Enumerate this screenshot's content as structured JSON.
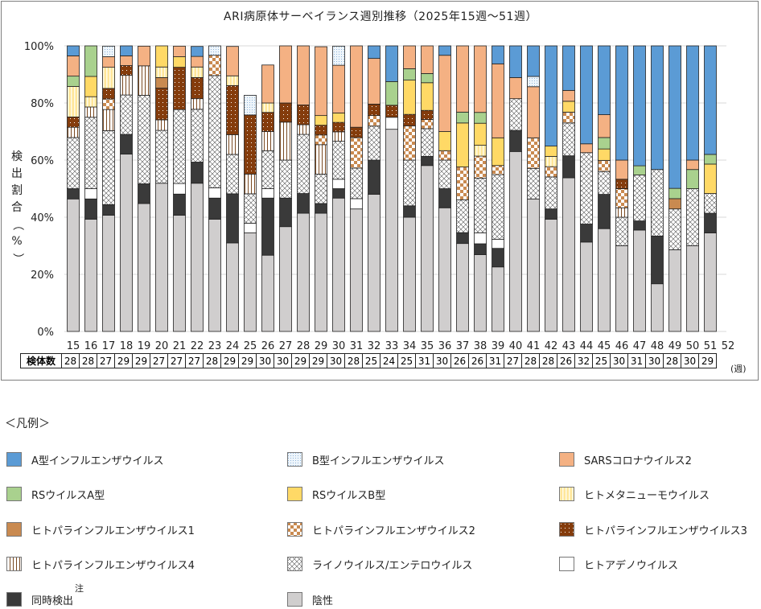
{
  "chart_data": {
    "type": "bar",
    "stacked": true,
    "percent": true,
    "title": "ARI病原体サーベイランス週別推移（2025年15週～51週）",
    "xlabel": "",
    "ylabel": "検出割合（%）",
    "ylim": [
      0,
      100
    ],
    "yticks": [
      "0%",
      "20%",
      "40%",
      "60%",
      "80%",
      "100%"
    ],
    "grid": true,
    "x_unit": "(週)",
    "categories": [
      "15",
      "16",
      "17",
      "18",
      "19",
      "20",
      "21",
      "22",
      "23",
      "24",
      "25",
      "26",
      "27",
      "28",
      "29",
      "30",
      "31",
      "32",
      "33",
      "34",
      "35",
      "36",
      "37",
      "38",
      "39",
      "40",
      "41",
      "42",
      "43",
      "44",
      "45",
      "46",
      "47",
      "48",
      "49",
      "50",
      "51",
      "52"
    ],
    "count_header": "検体数",
    "counts": [
      28,
      28,
      27,
      29,
      29,
      27,
      27,
      27,
      28,
      29,
      29,
      30,
      30,
      29,
      29,
      30,
      28,
      25,
      24,
      25,
      31,
      30,
      26,
      26,
      31,
      27,
      28,
      28,
      26,
      32,
      25,
      30,
      31,
      30,
      28,
      30,
      29,
      null
    ],
    "series": [
      {
        "key": "neg",
        "name": "陰性",
        "color": "#d0cece",
        "pattern": "solid",
        "values": [
          46.4,
          39.3,
          40.7,
          62.1,
          44.8,
          51.9,
          40.7,
          51.9,
          39.3,
          31.0,
          34.5,
          26.7,
          36.7,
          41.4,
          41.4,
          46.7,
          42.9,
          48.0,
          70.8,
          40.0,
          58.1,
          43.3,
          30.8,
          26.9,
          22.6,
          63.0,
          46.4,
          39.3,
          53.8,
          31.3,
          36.0,
          30.0,
          35.5,
          16.7,
          28.6,
          30.0,
          34.5,
          0
        ]
      },
      {
        "key": "co",
        "name": "同時検出",
        "color": "#3a3a3a",
        "pattern": "solid",
        "values": [
          3.6,
          7.1,
          3.7,
          6.9,
          6.9,
          0,
          7.4,
          7.4,
          7.4,
          17.2,
          0,
          20.0,
          10.0,
          6.9,
          3.4,
          3.3,
          0,
          12.0,
          0,
          4.0,
          3.2,
          6.7,
          3.8,
          3.8,
          6.5,
          7.4,
          0,
          3.6,
          7.7,
          6.3,
          12.0,
          0,
          3.2,
          16.7,
          0,
          0,
          6.9,
          0
        ]
      },
      {
        "key": "adeno",
        "name": "ヒトアデノウイルス",
        "color": "#ffffff",
        "pattern": "solid",
        "values": [
          0,
          3.6,
          0,
          0,
          0,
          0,
          3.7,
          0,
          3.6,
          0,
          3.4,
          3.3,
          0,
          0,
          0,
          3.3,
          3.6,
          0,
          4.2,
          0,
          0,
          0,
          0,
          3.8,
          3.2,
          0,
          0,
          0,
          0,
          0,
          0,
          0,
          0,
          0,
          0,
          0,
          0,
          0
        ]
      },
      {
        "key": "rhino",
        "name": "ライノウイルス/エンテロウイルス",
        "color": "#ffffff",
        "pattern": "cross",
        "values": [
          17.9,
          25.0,
          25.9,
          13.8,
          31.0,
          18.5,
          25.9,
          18.5,
          39.3,
          13.8,
          10.3,
          13.3,
          13.3,
          20.7,
          10.3,
          13.3,
          10.7,
          11.9,
          0,
          16.0,
          9.7,
          10.0,
          11.5,
          19.2,
          22.6,
          11.1,
          10.7,
          11.2,
          11.5,
          25.0,
          8.0,
          10.0,
          16.1,
          23.3,
          14.3,
          20.0,
          6.9,
          0
        ]
      },
      {
        "key": "para4",
        "name": "ヒトパラインフルエンザウイルス4",
        "color": "#ffffff",
        "pattern": "vstripe-brown",
        "values": [
          3.6,
          3.6,
          7.4,
          6.9,
          10.3,
          3.7,
          0,
          3.7,
          0,
          6.9,
          6.9,
          6.7,
          13.3,
          3.4,
          10.3,
          3.3,
          0,
          0,
          0,
          0,
          0,
          0,
          0,
          0,
          0,
          0,
          0,
          0,
          0,
          0,
          0,
          3.3,
          0,
          0,
          0,
          0,
          0,
          0
        ]
      },
      {
        "key": "para2",
        "name": "ヒトパラインフルエンザウイルス2",
        "color": "#c98a50",
        "pattern": "checker",
        "values": [
          0,
          0,
          3.7,
          0,
          0,
          0,
          0,
          0,
          7.1,
          0,
          0,
          0,
          0,
          0,
          3.4,
          0,
          10.7,
          3.7,
          0,
          12.0,
          3.2,
          3.3,
          11.5,
          7.7,
          3.2,
          0,
          10.7,
          3.6,
          3.8,
          0,
          3.9,
          6.7,
          0,
          0,
          0,
          0,
          0,
          0
        ]
      },
      {
        "key": "para3",
        "name": "ヒトパラインフルエンザウイルス3",
        "color": "#843c0c",
        "pattern": "dots",
        "values": [
          3.6,
          0,
          3.7,
          3.4,
          0,
          11.1,
          14.8,
          7.4,
          0,
          17.2,
          20.7,
          6.7,
          6.7,
          6.9,
          3.4,
          3.3,
          3.6,
          4.0,
          4.2,
          4.0,
          3.2,
          0,
          0,
          0,
          0,
          0,
          0,
          0,
          0,
          0,
          0,
          3.3,
          0,
          0,
          0,
          0,
          0,
          0
        ]
      },
      {
        "key": "para1",
        "name": "ヒトパラインフルエンザウイルス1",
        "color": "#c98a50",
        "pattern": "solid",
        "values": [
          0,
          0,
          0,
          0,
          0,
          3.7,
          0,
          0,
          0,
          0,
          0,
          0,
          0,
          0,
          0,
          0,
          0,
          0,
          0,
          0,
          0,
          0,
          0,
          0,
          0,
          0,
          0,
          0,
          0,
          0,
          0,
          0,
          0,
          0,
          3.6,
          0,
          0,
          0
        ]
      },
      {
        "key": "hmpv",
        "name": "ヒトメタニューモウイルス",
        "color": "#fff2cc",
        "pattern": "vstripe-yellow",
        "values": [
          10.7,
          3.6,
          7.4,
          0,
          0,
          3.7,
          0,
          3.7,
          0,
          3.4,
          0,
          3.3,
          0,
          0,
          0,
          0,
          0,
          0,
          0,
          0,
          0,
          0,
          0,
          3.8,
          0,
          0,
          0,
          3.6,
          0,
          0,
          0,
          0,
          0,
          0,
          0,
          0,
          0,
          0
        ]
      },
      {
        "key": "rsb",
        "name": "RSウイルスB型",
        "color": "#ffd966",
        "pattern": "solid",
        "values": [
          0,
          7.1,
          0,
          0,
          0,
          7.4,
          3.7,
          0,
          0,
          0,
          0,
          0,
          0,
          0,
          3.4,
          3.3,
          0,
          0,
          0,
          12.0,
          9.7,
          6.7,
          15.4,
          7.7,
          9.7,
          0,
          0,
          3.6,
          3.8,
          0,
          4.0,
          0,
          0,
          0,
          0,
          0,
          10.3,
          0
        ]
      },
      {
        "key": "rsa",
        "name": "RSウイルスA型",
        "color": "#a9d18e",
        "pattern": "solid",
        "values": [
          3.6,
          10.7,
          0,
          0,
          0,
          0,
          0,
          0,
          0,
          0,
          0,
          0,
          0,
          0,
          0,
          0,
          0,
          0,
          8.3,
          4.0,
          3.2,
          0,
          3.8,
          3.8,
          0,
          0,
          0,
          0,
          0,
          0,
          4.0,
          0,
          3.2,
          0,
          3.6,
          6.7,
          3.4,
          0
        ]
      },
      {
        "key": "sars2",
        "name": "SARSコロナウイルス2",
        "color": "#f4b183",
        "pattern": "solid",
        "values": [
          7.1,
          3.6,
          3.7,
          3.4,
          6.9,
          0,
          3.7,
          3.7,
          0,
          10.3,
          0,
          13.3,
          20.0,
          20.7,
          24.1,
          16.7,
          28.6,
          16.0,
          0,
          12.0,
          12.9,
          26.7,
          34.6,
          26.9,
          25.9,
          7.4,
          17.9,
          0,
          3.8,
          3.1,
          8.0,
          6.7,
          0,
          0,
          0,
          3.3,
          0,
          0
        ]
      },
      {
        "key": "infb",
        "name": "B型インフルエンザウイルス",
        "color": "#ddebf7",
        "pattern": "dots-blue",
        "values": [
          0,
          0,
          3.7,
          0,
          0,
          0,
          0,
          0,
          3.6,
          0,
          6.9,
          0,
          0,
          0,
          0,
          6.7,
          0,
          0,
          0,
          0,
          0,
          0,
          0,
          0,
          0,
          0,
          3.6,
          0,
          0,
          0,
          0,
          0,
          0,
          0,
          0,
          0,
          0,
          0
        ]
      },
      {
        "key": "infa",
        "name": "A型インフルエンザウイルス",
        "color": "#5b9bd5",
        "pattern": "solid",
        "values": [
          3.5,
          0,
          0,
          3.5,
          0,
          0,
          0,
          3.5,
          0,
          0,
          0,
          0,
          0,
          0,
          0,
          0,
          3.6,
          4.4,
          12.5,
          0,
          0,
          3.3,
          0,
          0,
          6.3,
          11.1,
          10.7,
          35.1,
          15.6,
          34.4,
          24.1,
          40.0,
          42.0,
          43.3,
          49.9,
          40.0,
          38.0,
          0
        ]
      }
    ]
  },
  "legend": {
    "title": "＜凡例＞",
    "note_mark": "注",
    "items": [
      {
        "label": "A型インフルエンザウイルス",
        "key": "infa"
      },
      {
        "label": "B型インフルエンザウイルス",
        "key": "infb"
      },
      {
        "label": "SARSコロナウイルス2",
        "key": "sars2"
      },
      {
        "label": "RSウイルスA型",
        "key": "rsa"
      },
      {
        "label": "RSウイルスB型",
        "key": "rsb"
      },
      {
        "label": "ヒトメタニューモウイルス",
        "key": "hmpv"
      },
      {
        "label": "ヒトパラインフルエンザウイルス1",
        "key": "para1"
      },
      {
        "label": "ヒトパラインフルエンザウイルス2",
        "key": "para2"
      },
      {
        "label": "ヒトパラインフルエンザウイルス3",
        "key": "para3"
      },
      {
        "label": "ヒトパラインフルエンザウイルス4",
        "key": "para4"
      },
      {
        "label": "ライノウイルス/エンテロウイルス",
        "key": "rhino"
      },
      {
        "label": "ヒトアデノウイルス",
        "key": "adeno"
      },
      {
        "label": "同時検出",
        "key": "co"
      },
      {
        "label": "陰性",
        "key": "neg"
      }
    ]
  }
}
